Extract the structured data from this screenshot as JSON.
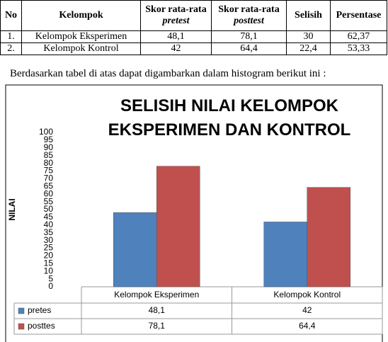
{
  "table": {
    "header": [
      "No",
      "Kelompok",
      {
        "text": "Skor rata-rata",
        "em": "pretest"
      },
      {
        "text": "Skor rata-rata",
        "em": "posttest"
      },
      "Selisih",
      "Persentase"
    ],
    "rows": [
      [
        "1.",
        "Kelompok Eksperimen",
        "48,1",
        "78,1",
        "30",
        "62,37"
      ],
      [
        "2.",
        "Kelompok Kontrol",
        "42",
        "64,4",
        "22,4",
        "53,33"
      ]
    ]
  },
  "paragraph": "Berdasarkan tabel di atas dapat digambarkan dalam histogram berikut ini :",
  "chart_data": {
    "type": "bar",
    "title": "SELISIH NILAI KELOMPOK EKSPERIMEN DAN KONTROL",
    "y_label": "NILAI",
    "categories": [
      "Kelompok Eksperimen",
      "Kelompok Kontrol"
    ],
    "series": [
      {
        "name": "pretes",
        "color": "#4f81bd",
        "values": [
          48.1,
          42
        ],
        "value_labels": [
          "48,1",
          "42"
        ]
      },
      {
        "name": "posttes",
        "color": "#c0504d",
        "values": [
          78.1,
          64.4
        ],
        "value_labels": [
          "78,1",
          "64,4"
        ]
      }
    ],
    "ylim": [
      0,
      100
    ],
    "yticks": [
      0,
      5,
      10,
      15,
      20,
      25,
      30,
      35,
      40,
      45,
      50,
      55,
      60,
      65,
      70,
      75,
      80,
      85,
      90,
      95,
      100
    ]
  }
}
